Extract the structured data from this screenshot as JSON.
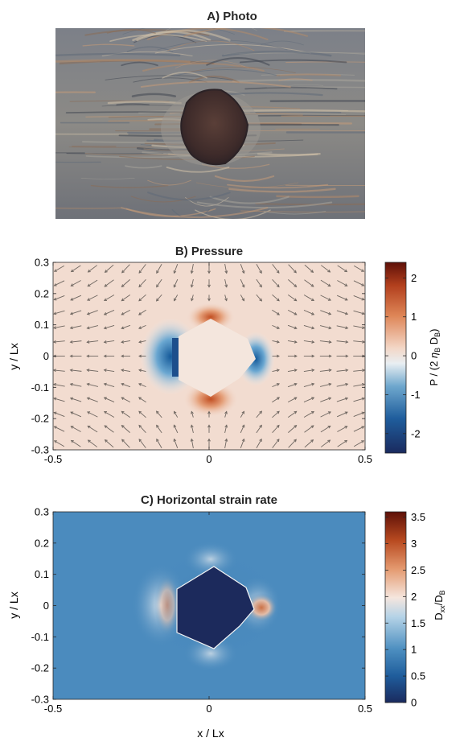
{
  "figure": {
    "panel_a_title": "A) Photo"
  },
  "chart_data": [
    {
      "type": "heatmap",
      "title": "B) Pressure",
      "xlabel": "",
      "ylabel": "y / Lx",
      "xlim": [
        -0.5,
        0.5
      ],
      "ylim": [
        -0.3,
        0.3
      ],
      "xticks": [
        "-0.5",
        "0",
        "0.5"
      ],
      "yticks": [
        "0.3",
        "0.2",
        "0.1",
        "0",
        "-0.1",
        "-0.2",
        "-0.3"
      ],
      "colorbar": {
        "label": "P / (2 η_B D_B)",
        "range": [
          -2.5,
          2.4
        ],
        "ticks": [
          "2",
          "1",
          "0",
          "-1",
          "-2"
        ],
        "colormap": "blue-white-red diverging"
      },
      "overlay": "velocity arrows (quiver)",
      "inclusion": "pentagon-shaped rigid clast at center (approx. -0.1 to 0.14 in x, -0.13 to 0.13 in y)"
    },
    {
      "type": "heatmap",
      "title": "C) Horizontal strain rate",
      "xlabel": "x / Lx",
      "ylabel": "y / Lx",
      "xlim": [
        -0.5,
        0.5
      ],
      "ylim": [
        -0.3,
        0.3
      ],
      "xticks": [
        "-0.5",
        "0",
        "0.5"
      ],
      "yticks": [
        "0.3",
        "0.2",
        "0.1",
        "0",
        "-0.1",
        "-0.2",
        "-0.3"
      ],
      "colorbar": {
        "label": "D_xx / D_B",
        "range": [
          0,
          3.6
        ],
        "ticks": [
          "3.5",
          "3",
          "2.5",
          "2",
          "1.5",
          "1",
          "0.5",
          "0"
        ],
        "colormap": "blue-white-red"
      },
      "inclusion": "pentagon-shaped rigid clast at center with near-zero strain rate"
    }
  ]
}
